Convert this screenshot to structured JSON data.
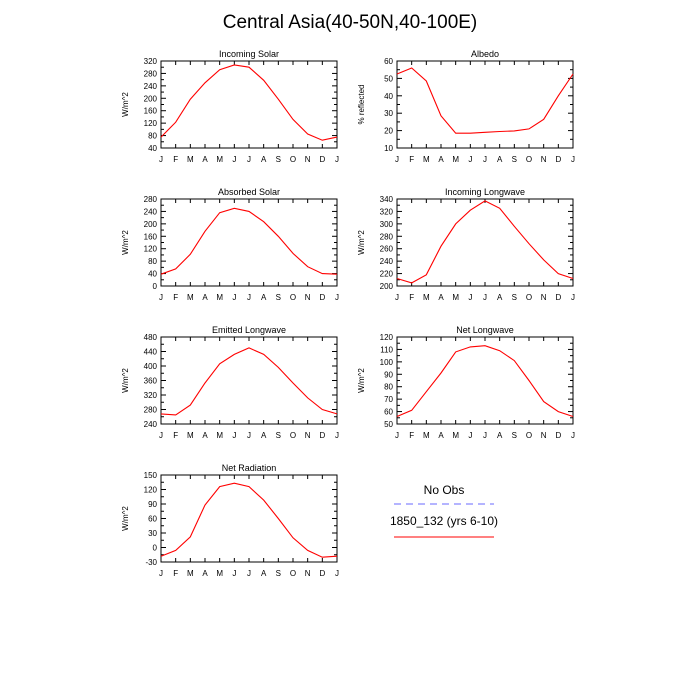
{
  "title": "Central Asia(40-50N,40-100E)",
  "colors": {
    "model": "#ff0000",
    "obs": "#0000ff",
    "axis": "#000000"
  },
  "legend": {
    "obs_label": "No Obs",
    "model_label": "1850_132 (yrs 6-10)"
  },
  "chart_data": [
    {
      "type": "line",
      "title": "Incoming Solar",
      "ylabel": "W/m^2",
      "categories": [
        "J",
        "F",
        "M",
        "A",
        "M",
        "J",
        "J",
        "A",
        "S",
        "O",
        "N",
        "D",
        "J"
      ],
      "ylim": [
        40,
        320
      ],
      "yticks": [
        40,
        80,
        120,
        160,
        200,
        240,
        280,
        320
      ],
      "series": [
        {
          "name": "1850_132 (yrs 6-10)",
          "values": [
            75,
            123,
            197,
            250,
            292,
            307,
            300,
            258,
            197,
            132,
            85,
            65,
            75
          ]
        }
      ]
    },
    {
      "type": "line",
      "title": "Albedo",
      "ylabel": "% reflected",
      "categories": [
        "J",
        "F",
        "M",
        "A",
        "M",
        "J",
        "J",
        "A",
        "S",
        "O",
        "N",
        "D",
        "J"
      ],
      "ylim": [
        10,
        60
      ],
      "yticks": [
        10,
        20,
        30,
        40,
        50,
        60
      ],
      "series": [
        {
          "name": "1850_132 (yrs 6-10)",
          "values": [
            52.5,
            56,
            48.5,
            28.5,
            18.5,
            18.5,
            19,
            19.5,
            19.8,
            21,
            26.5,
            40,
            52.5
          ]
        }
      ]
    },
    {
      "type": "line",
      "title": "Absorbed Solar",
      "ylabel": "W/m^2",
      "categories": [
        "J",
        "F",
        "M",
        "A",
        "M",
        "J",
        "J",
        "A",
        "S",
        "O",
        "N",
        "D",
        "J"
      ],
      "ylim": [
        0,
        280
      ],
      "yticks": [
        0,
        40,
        80,
        120,
        160,
        200,
        240,
        280
      ],
      "series": [
        {
          "name": "1850_132 (yrs 6-10)",
          "values": [
            38,
            55,
            102,
            176,
            236,
            250,
            240,
            207,
            160,
            105,
            62,
            40,
            38
          ]
        }
      ]
    },
    {
      "type": "line",
      "title": "Incoming Longwave",
      "ylabel": "W/m^2",
      "categories": [
        "J",
        "F",
        "M",
        "A",
        "M",
        "J",
        "J",
        "A",
        "S",
        "O",
        "N",
        "D",
        "J"
      ],
      "ylim": [
        200,
        340
      ],
      "yticks": [
        200,
        220,
        240,
        260,
        280,
        300,
        320,
        340
      ],
      "series": [
        {
          "name": "1850_132 (yrs 6-10)",
          "values": [
            212,
            205,
            218,
            264,
            300,
            322,
            337,
            325,
            296,
            268,
            242,
            220,
            212
          ]
        }
      ]
    },
    {
      "type": "line",
      "title": "Emitted Longwave",
      "ylabel": "W/m^2",
      "categories": [
        "J",
        "F",
        "M",
        "A",
        "M",
        "J",
        "J",
        "A",
        "S",
        "O",
        "N",
        "D",
        "J"
      ],
      "ylim": [
        240,
        480
      ],
      "yticks": [
        240,
        280,
        320,
        360,
        400,
        440,
        480
      ],
      "series": [
        {
          "name": "1850_132 (yrs 6-10)",
          "values": [
            268,
            265,
            292,
            353,
            406,
            432,
            450,
            432,
            396,
            353,
            312,
            280,
            268
          ]
        }
      ]
    },
    {
      "type": "line",
      "title": "Net Longwave",
      "ylabel": "W/m^2",
      "categories": [
        "J",
        "F",
        "M",
        "A",
        "M",
        "J",
        "J",
        "A",
        "S",
        "O",
        "N",
        "D",
        "J"
      ],
      "ylim": [
        50,
        120
      ],
      "yticks": [
        50,
        60,
        70,
        80,
        90,
        100,
        110,
        120
      ],
      "series": [
        {
          "name": "1850_132 (yrs 6-10)",
          "values": [
            56,
            61,
            76,
            91,
            108,
            112,
            113,
            109,
            101,
            85,
            68,
            60,
            56
          ]
        }
      ]
    },
    {
      "type": "line",
      "title": "Net Radiation",
      "ylabel": "W/m^2",
      "categories": [
        "J",
        "F",
        "M",
        "A",
        "M",
        "J",
        "J",
        "A",
        "S",
        "O",
        "N",
        "D",
        "J"
      ],
      "ylim": [
        -30,
        150
      ],
      "yticks": [
        -30,
        0,
        30,
        60,
        90,
        120,
        150
      ],
      "series": [
        {
          "name": "1850_132 (yrs 6-10)",
          "values": [
            -18,
            -6,
            22,
            88,
            126,
            133,
            126,
            98,
            60,
            20,
            -6,
            -20,
            -18
          ]
        }
      ]
    }
  ]
}
